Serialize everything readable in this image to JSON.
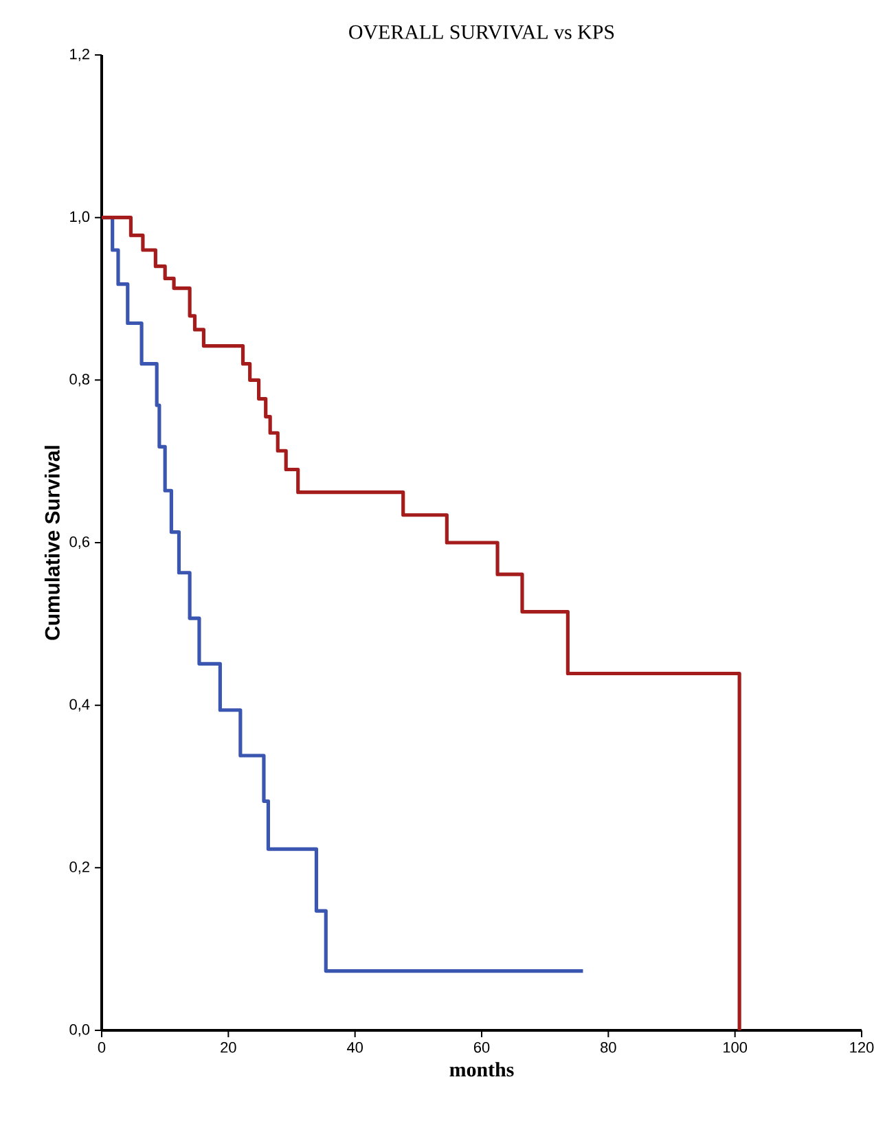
{
  "chart_data": {
    "type": "step",
    "title": "OVERALL SURVIVAL vs KPS",
    "xlabel": "months",
    "ylabel": "Cumulative Survival",
    "xlim": [
      0,
      120
    ],
    "xticks": [
      0,
      20,
      40,
      60,
      80,
      100,
      120
    ],
    "ylim": [
      0,
      1.2
    ],
    "yticks": [
      {
        "value": 0,
        "label": "0,0"
      },
      {
        "value": 0.2,
        "label": "0,2"
      },
      {
        "value": 0.4,
        "label": "0,4"
      },
      {
        "value": 0.6,
        "label": "0,6"
      },
      {
        "value": 0.8,
        "label": "0,8"
      },
      {
        "value": 1.0,
        "label": "1,0"
      },
      {
        "value": 1.2,
        "label": "1,2"
      }
    ],
    "marker": "none",
    "line_style": "solid",
    "series": [
      {
        "color": "#3a56b0",
        "x": [
          0,
          1.7,
          2.6,
          4.1,
          6.3,
          8.7,
          9.1,
          10,
          11,
          12.2,
          13.9,
          15.4,
          18.7,
          21.9,
          25.6,
          26.3,
          33.9,
          35.4,
          76
        ],
        "values": [
          1.0,
          0.96,
          0.918,
          0.87,
          0.82,
          0.769,
          0.718,
          0.664,
          0.613,
          0.563,
          0.507,
          0.451,
          0.394,
          0.338,
          0.282,
          0.223,
          0.147,
          0.073,
          0.073
        ]
      },
      {
        "color": "#a51c1c",
        "x": [
          0,
          4.6,
          6.5,
          8.5,
          10,
          11.4,
          13.9,
          14.7,
          16.1,
          22.3,
          23.4,
          24.8,
          25.9,
          26.6,
          27.8,
          29.1,
          31,
          33.9,
          47.6,
          54.5,
          62.5,
          66.4,
          73.6,
          100.7
        ],
        "values": [
          1.0,
          0.978,
          0.96,
          0.94,
          0.925,
          0.913,
          0.879,
          0.862,
          0.842,
          0.82,
          0.8,
          0.777,
          0.755,
          0.735,
          0.713,
          0.69,
          0.662,
          0.662,
          0.634,
          0.6,
          0.561,
          0.515,
          0.439,
          0
        ]
      }
    ]
  }
}
